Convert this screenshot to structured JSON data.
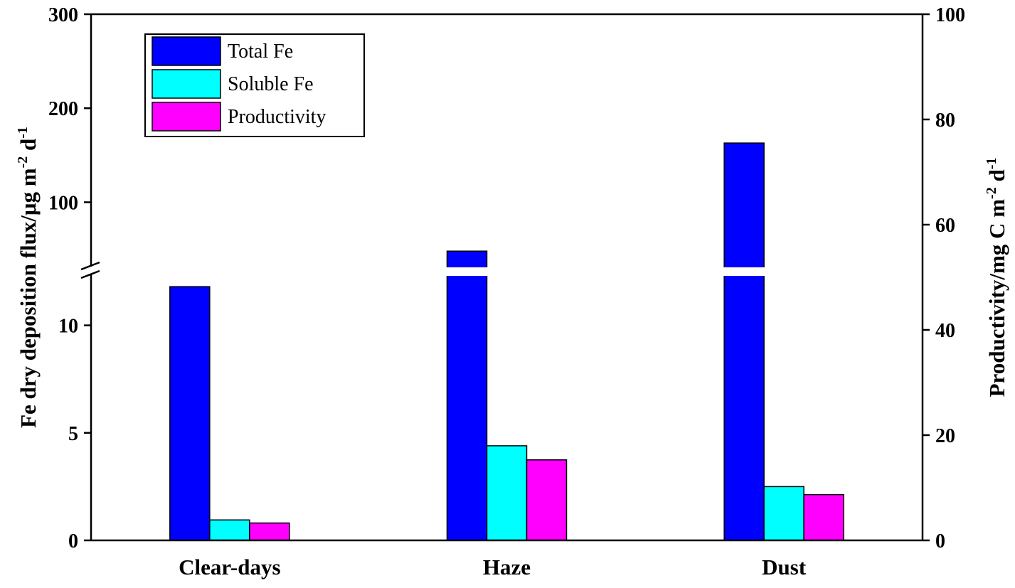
{
  "chart_data": {
    "type": "bar",
    "categories": [
      "Clear-days",
      "Haze",
      "Dust"
    ],
    "series": [
      {
        "name": "Total Fe",
        "axis": "left",
        "color": "#0000ff",
        "values": [
          11.8,
          48,
          163
        ]
      },
      {
        "name": "Soluble Fe",
        "axis": "left",
        "color": "#00ffff",
        "values": [
          0.95,
          4.4,
          2.5
        ]
      },
      {
        "name": "Productivity",
        "axis": "right",
        "color": "#ff00ff",
        "values": [
          3.3,
          15.3,
          8.7
        ]
      }
    ],
    "y_left": {
      "label_main": "Fe dry deposition flux/μg m",
      "label_sup1": "-2",
      "label_mid": " d",
      "label_sup2": "-1",
      "broken": true,
      "lower_range": [
        0,
        12.5
      ],
      "upper_range": [
        30,
        300
      ],
      "lower_ticks": [
        0,
        5,
        10
      ],
      "upper_ticks": [
        100,
        200,
        300
      ]
    },
    "y_right": {
      "label_main": "Productivity/mg C m",
      "label_sup1": "-2",
      "label_mid": " d",
      "label_sup2": "-1",
      "range": [
        0,
        100
      ],
      "ticks": [
        0,
        20,
        40,
        60,
        80,
        100
      ]
    },
    "legend": {
      "position": "top-left"
    },
    "grid": false
  }
}
